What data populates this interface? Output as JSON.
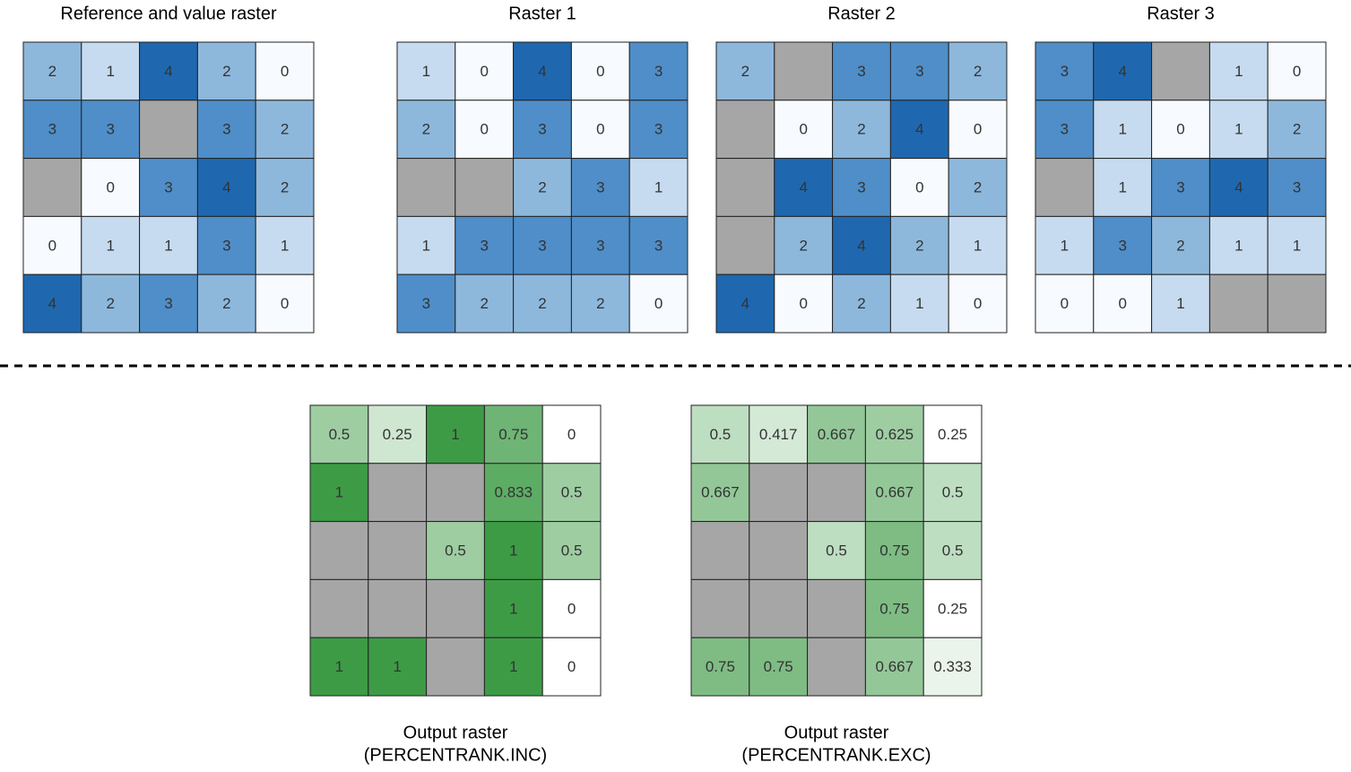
{
  "top_rasters": [
    {
      "title": "Reference and value raster",
      "cells": [
        [
          2,
          1,
          4,
          2,
          0
        ],
        [
          3,
          3,
          null,
          3,
          2
        ],
        [
          null,
          0,
          3,
          4,
          2
        ],
        [
          0,
          1,
          1,
          3,
          1
        ],
        [
          4,
          2,
          3,
          2,
          0
        ]
      ]
    },
    {
      "title": "Raster 1",
      "cells": [
        [
          1,
          0,
          4,
          0,
          3
        ],
        [
          2,
          0,
          3,
          0,
          3
        ],
        [
          null,
          null,
          2,
          3,
          1
        ],
        [
          1,
          3,
          3,
          3,
          3
        ],
        [
          3,
          2,
          2,
          2,
          0
        ]
      ]
    },
    {
      "title": "Raster 2",
      "cells": [
        [
          2,
          null,
          3,
          3,
          2
        ],
        [
          null,
          0,
          2,
          4,
          0
        ],
        [
          null,
          4,
          3,
          0,
          2
        ],
        [
          null,
          2,
          4,
          2,
          1
        ],
        [
          4,
          0,
          2,
          1,
          0
        ]
      ]
    },
    {
      "title": "Raster 3",
      "cells": [
        [
          3,
          4,
          null,
          1,
          0
        ],
        [
          3,
          1,
          0,
          1,
          2
        ],
        [
          null,
          1,
          3,
          4,
          3
        ],
        [
          1,
          3,
          2,
          1,
          1
        ],
        [
          0,
          0,
          1,
          null,
          null
        ]
      ]
    }
  ],
  "output_rasters": [
    {
      "title": [
        "Output raster",
        "(PERCENTRANK.INC)"
      ],
      "cells": [
        [
          0.5,
          0.25,
          1,
          0.75,
          0
        ],
        [
          1,
          null,
          null,
          0.833,
          0.5
        ],
        [
          null,
          null,
          0.5,
          1,
          0.5
        ],
        [
          null,
          null,
          null,
          1,
          0
        ],
        [
          1,
          1,
          null,
          1,
          0
        ]
      ]
    },
    {
      "title": [
        "Output raster",
        "(PERCENTRANK.EXC)"
      ],
      "cells": [
        [
          0.5,
          0.417,
          0.667,
          0.625,
          0.25
        ],
        [
          0.667,
          null,
          null,
          0.667,
          0.5
        ],
        [
          null,
          null,
          0.5,
          0.75,
          0.5
        ],
        [
          null,
          null,
          null,
          0.75,
          0.25
        ],
        [
          0.75,
          0.75,
          null,
          0.667,
          0.333
        ]
      ]
    }
  ]
}
